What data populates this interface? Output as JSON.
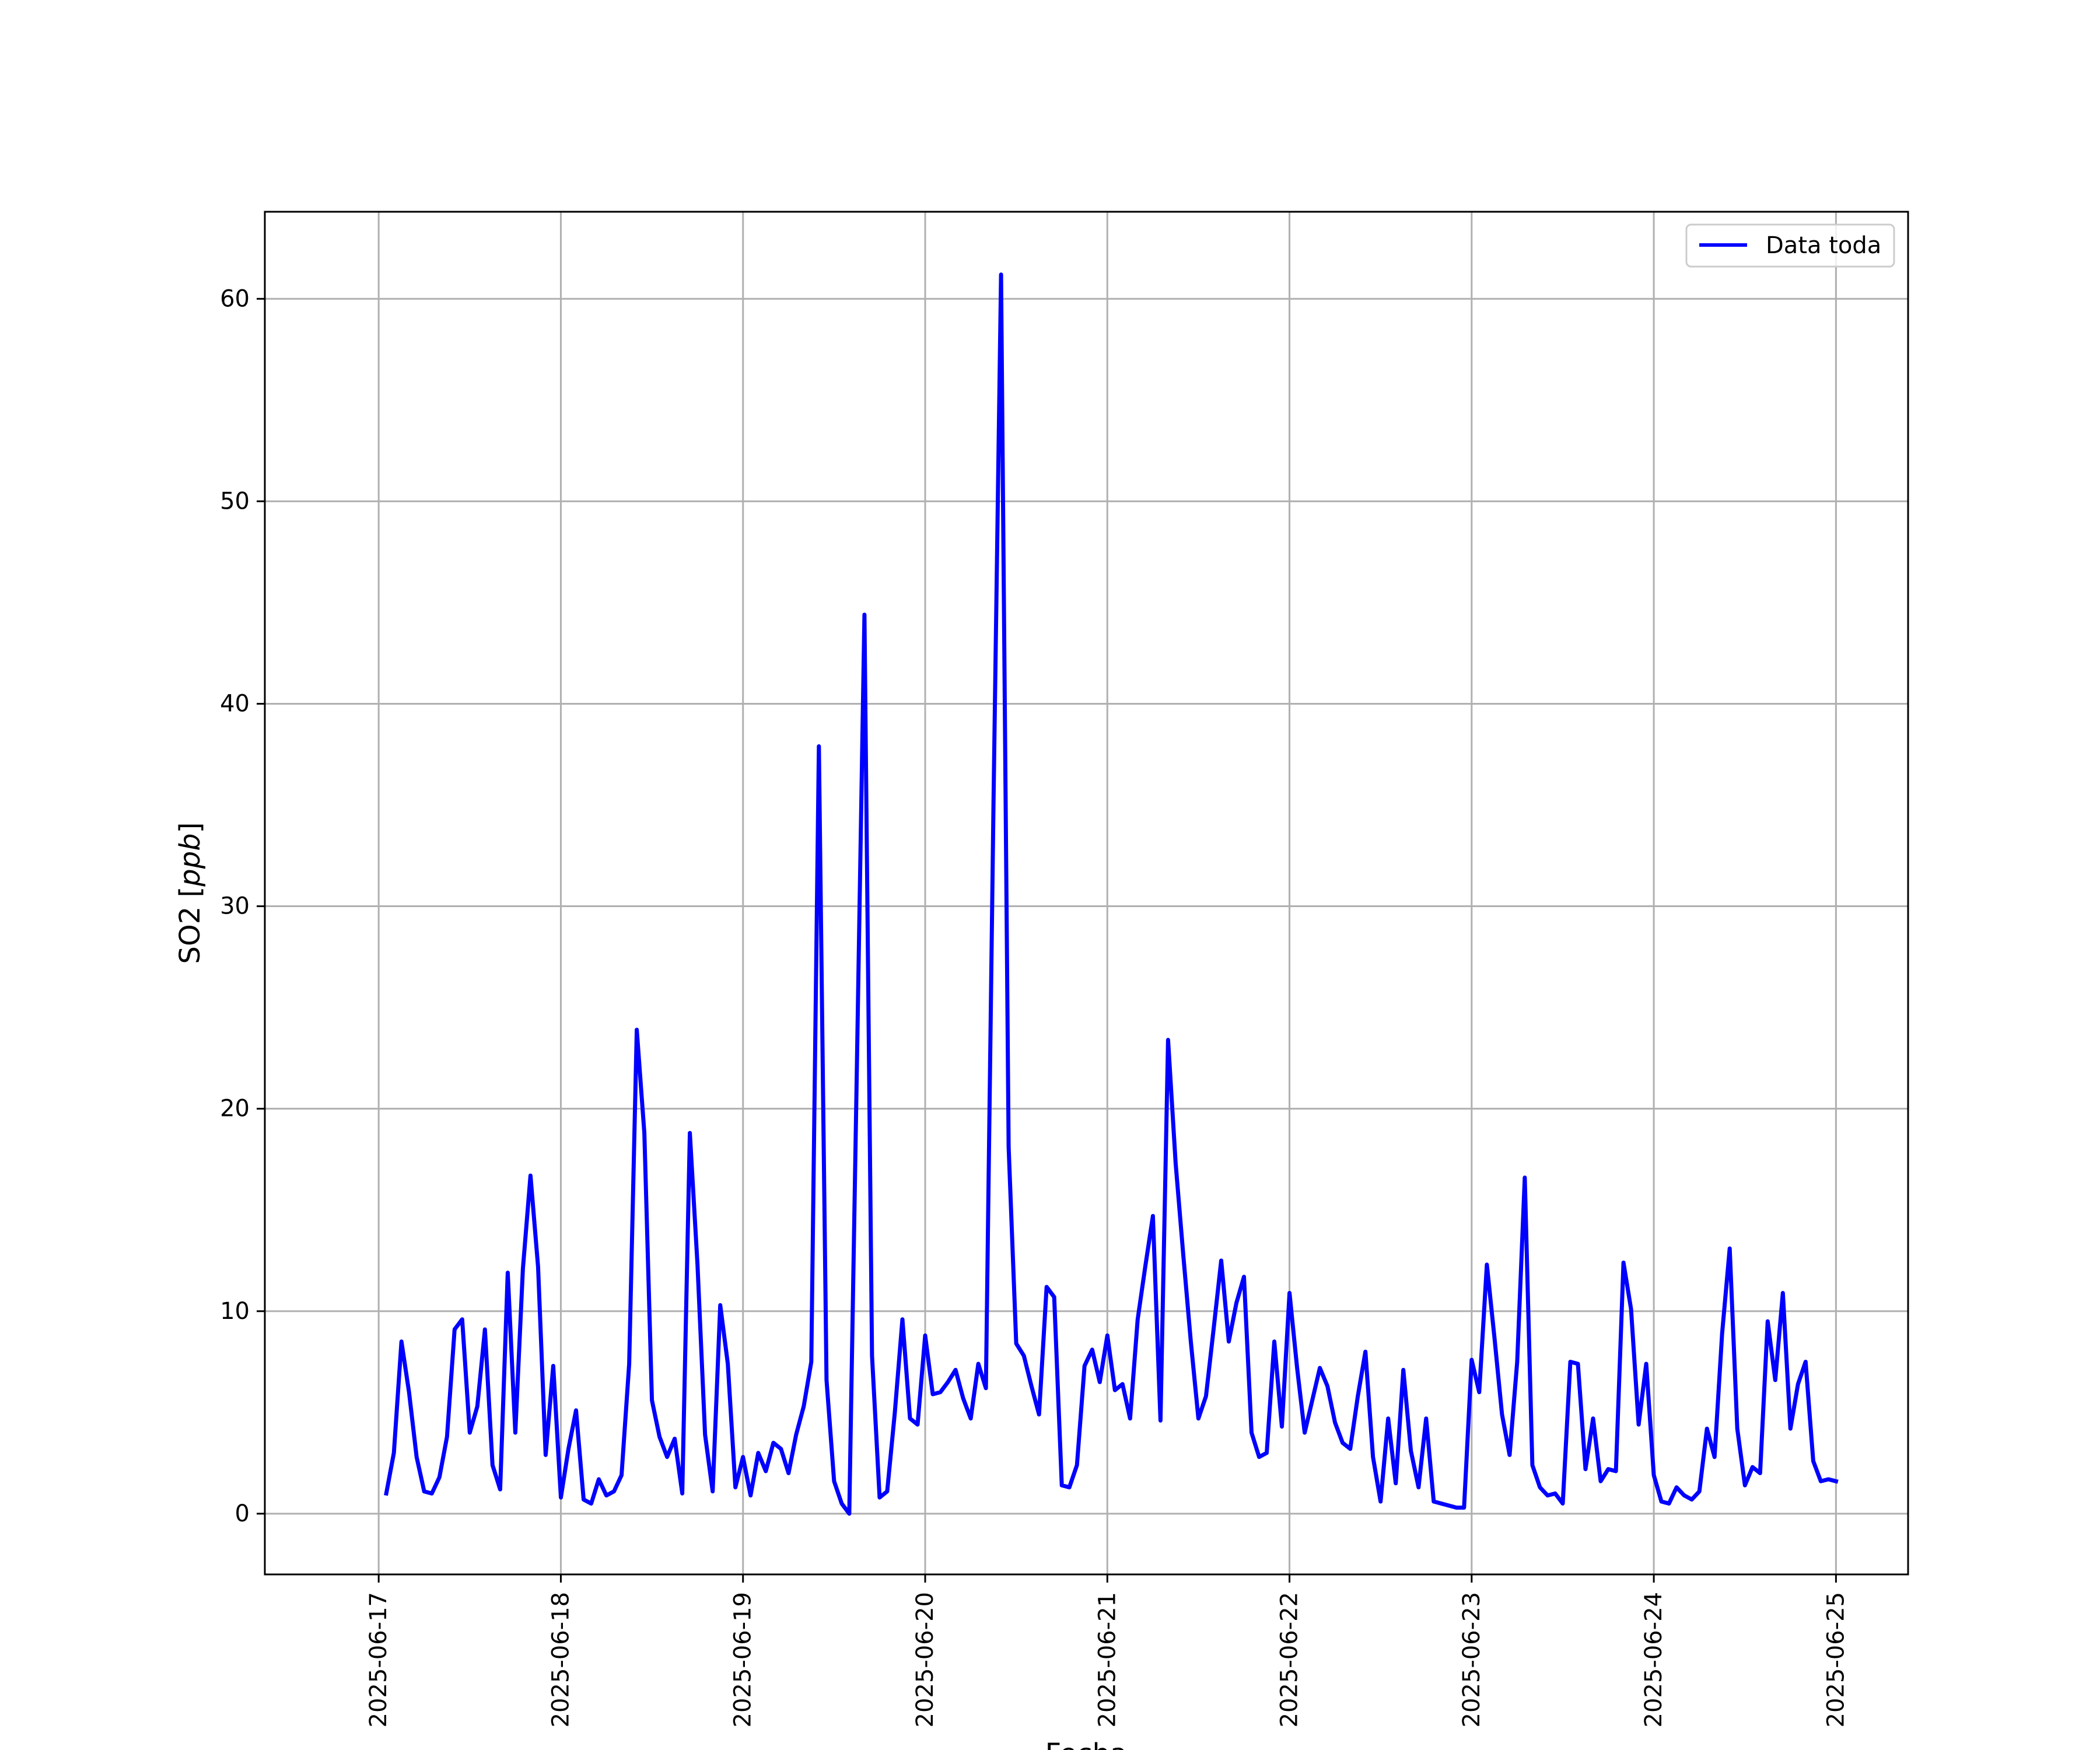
{
  "chart_data": {
    "type": "line",
    "title": "",
    "xlabel": "Fecha",
    "ylabel_text": "SO2 [",
    "ylabel_unit": "ppb",
    "ylabel_close": "]",
    "x_axis_type": "date",
    "x_ticks": [
      "2025-06-17",
      "2025-06-18",
      "2025-06-19",
      "2025-06-20",
      "2025-06-21",
      "2025-06-22",
      "2025-06-23",
      "2025-06-24",
      "2025-06-25"
    ],
    "y_ticks": [
      0,
      10,
      20,
      30,
      40,
      50,
      60
    ],
    "xlim": [
      "2025-06-16 09:00",
      "2025-06-25 09:30"
    ],
    "ylim": [
      -3.0,
      64.3
    ],
    "grid": true,
    "legend_position": "top-right",
    "line_color": "#0000ff",
    "series": [
      {
        "name": "Data toda",
        "x": [
          "2025-06-17 01:00",
          "2025-06-17 02:00",
          "2025-06-17 03:00",
          "2025-06-17 04:00",
          "2025-06-17 05:00",
          "2025-06-17 06:00",
          "2025-06-17 07:00",
          "2025-06-17 08:00",
          "2025-06-17 09:00",
          "2025-06-17 10:00",
          "2025-06-17 11:00",
          "2025-06-17 12:00",
          "2025-06-17 13:00",
          "2025-06-17 14:00",
          "2025-06-17 15:00",
          "2025-06-17 16:00",
          "2025-06-17 17:00",
          "2025-06-17 18:00",
          "2025-06-17 19:00",
          "2025-06-17 20:00",
          "2025-06-17 21:00",
          "2025-06-17 22:00",
          "2025-06-17 23:00",
          "2025-06-18 00:00",
          "2025-06-18 01:00",
          "2025-06-18 02:00",
          "2025-06-18 03:00",
          "2025-06-18 04:00",
          "2025-06-18 05:00",
          "2025-06-18 06:00",
          "2025-06-18 07:00",
          "2025-06-18 08:00",
          "2025-06-18 09:00",
          "2025-06-18 10:00",
          "2025-06-18 11:00",
          "2025-06-18 12:00",
          "2025-06-18 13:00",
          "2025-06-18 14:00",
          "2025-06-18 15:00",
          "2025-06-18 16:00",
          "2025-06-18 17:00",
          "2025-06-18 18:00",
          "2025-06-18 19:00",
          "2025-06-18 20:00",
          "2025-06-18 21:00",
          "2025-06-18 22:00",
          "2025-06-18 23:00",
          "2025-06-19 00:00",
          "2025-06-19 01:00",
          "2025-06-19 02:00",
          "2025-06-19 03:00",
          "2025-06-19 04:00",
          "2025-06-19 05:00",
          "2025-06-19 06:00",
          "2025-06-19 07:00",
          "2025-06-19 08:00",
          "2025-06-19 09:00",
          "2025-06-19 10:00",
          "2025-06-19 11:00",
          "2025-06-19 12:00",
          "2025-06-19 13:00",
          "2025-06-19 14:00",
          "2025-06-19 15:00",
          "2025-06-19 16:00",
          "2025-06-19 17:00",
          "2025-06-19 18:00",
          "2025-06-19 19:00",
          "2025-06-19 20:00",
          "2025-06-19 21:00",
          "2025-06-19 22:00",
          "2025-06-19 23:00",
          "2025-06-20 00:00",
          "2025-06-20 01:00",
          "2025-06-20 02:00",
          "2025-06-20 03:00",
          "2025-06-20 04:00",
          "2025-06-20 05:00",
          "2025-06-20 06:00",
          "2025-06-20 07:00",
          "2025-06-20 08:00",
          "2025-06-20 09:00",
          "2025-06-20 10:00",
          "2025-06-20 11:00",
          "2025-06-20 12:00",
          "2025-06-20 13:00",
          "2025-06-20 14:00",
          "2025-06-20 15:00",
          "2025-06-20 16:00",
          "2025-06-20 17:00",
          "2025-06-20 18:00",
          "2025-06-20 19:00",
          "2025-06-20 20:00",
          "2025-06-20 21:00",
          "2025-06-20 22:00",
          "2025-06-20 23:00",
          "2025-06-21 00:00",
          "2025-06-21 01:00",
          "2025-06-21 02:00",
          "2025-06-21 03:00",
          "2025-06-21 04:00",
          "2025-06-21 05:00",
          "2025-06-21 06:00",
          "2025-06-21 07:00",
          "2025-06-21 08:00",
          "2025-06-21 09:00",
          "2025-06-21 10:00",
          "2025-06-21 11:00",
          "2025-06-21 12:00",
          "2025-06-21 13:00",
          "2025-06-21 14:00",
          "2025-06-21 15:00",
          "2025-06-21 16:00",
          "2025-06-21 17:00",
          "2025-06-21 18:00",
          "2025-06-21 19:00",
          "2025-06-21 20:00",
          "2025-06-21 21:00",
          "2025-06-21 22:00",
          "2025-06-21 23:00",
          "2025-06-22 00:00",
          "2025-06-22 01:00",
          "2025-06-22 02:00",
          "2025-06-22 03:00",
          "2025-06-22 04:00",
          "2025-06-22 05:00",
          "2025-06-22 06:00",
          "2025-06-22 07:00",
          "2025-06-22 08:00",
          "2025-06-22 09:00",
          "2025-06-22 10:00",
          "2025-06-22 11:00",
          "2025-06-22 12:00",
          "2025-06-22 13:00",
          "2025-06-22 14:00",
          "2025-06-22 15:00",
          "2025-06-22 16:00",
          "2025-06-22 17:00",
          "2025-06-22 18:00",
          "2025-06-22 19:00",
          "2025-06-22 20:00",
          "2025-06-22 21:00",
          "2025-06-22 22:00",
          "2025-06-22 23:00",
          "2025-06-23 00:00",
          "2025-06-23 01:00",
          "2025-06-23 02:00",
          "2025-06-23 03:00",
          "2025-06-23 04:00",
          "2025-06-23 05:00",
          "2025-06-23 06:00",
          "2025-06-23 07:00",
          "2025-06-23 08:00",
          "2025-06-23 09:00",
          "2025-06-23 10:00",
          "2025-06-23 11:00",
          "2025-06-23 12:00",
          "2025-06-23 13:00",
          "2025-06-23 14:00",
          "2025-06-23 15:00",
          "2025-06-23 16:00",
          "2025-06-23 17:00",
          "2025-06-23 18:00",
          "2025-06-23 19:00",
          "2025-06-23 20:00",
          "2025-06-23 21:00",
          "2025-06-23 22:00",
          "2025-06-23 23:00",
          "2025-06-24 00:00",
          "2025-06-24 01:00",
          "2025-06-24 02:00",
          "2025-06-24 03:00",
          "2025-06-24 04:00",
          "2025-06-24 05:00",
          "2025-06-24 06:00",
          "2025-06-24 07:00",
          "2025-06-24 08:00",
          "2025-06-24 09:00",
          "2025-06-24 10:00",
          "2025-06-24 11:00",
          "2025-06-24 12:00",
          "2025-06-24 13:00",
          "2025-06-24 14:00",
          "2025-06-24 15:00",
          "2025-06-24 16:00",
          "2025-06-24 17:00",
          "2025-06-24 18:00",
          "2025-06-24 19:00",
          "2025-06-24 20:00",
          "2025-06-24 21:00",
          "2025-06-24 22:00",
          "2025-06-24 23:00",
          "2025-06-25 00:00"
        ],
        "y": [
          1.0,
          3.0,
          8.5,
          6.0,
          2.8,
          1.1,
          1.0,
          1.8,
          3.8,
          9.1,
          9.6,
          4.0,
          5.3,
          9.1,
          2.4,
          1.2,
          11.9,
          4.0,
          12.1,
          16.7,
          12.2,
          2.9,
          7.3,
          0.8,
          3.2,
          5.1,
          0.7,
          0.5,
          1.7,
          0.9,
          1.1,
          1.9,
          7.4,
          23.9,
          18.8,
          5.6,
          3.8,
          2.8,
          3.7,
          1.0,
          18.8,
          12.3,
          3.9,
          1.1,
          10.3,
          7.4,
          1.3,
          2.8,
          0.9,
          3.0,
          2.1,
          3.5,
          3.2,
          2.0,
          3.9,
          5.3,
          7.5,
          37.9,
          6.6,
          1.6,
          0.5,
          0.0,
          22.0,
          44.4,
          7.8,
          0.8,
          1.1,
          5.0,
          9.6,
          4.7,
          4.4,
          8.8,
          5.9,
          6.0,
          6.5,
          7.1,
          5.7,
          4.7,
          7.4,
          6.2,
          35.0,
          61.2,
          18.1,
          8.4,
          7.8,
          6.3,
          4.9,
          11.2,
          10.7,
          1.4,
          1.3,
          2.4,
          7.3,
          8.1,
          6.5,
          8.8,
          6.1,
          6.4,
          4.7,
          9.6,
          12.2,
          14.7,
          4.6,
          23.4,
          17.3,
          12.8,
          8.5,
          4.7,
          5.8,
          9.1,
          12.5,
          8.5,
          10.4,
          11.7,
          4.0,
          2.8,
          3.0,
          8.5,
          4.3,
          10.9,
          7.2,
          4.0,
          5.6,
          7.2,
          6.3,
          4.5,
          3.5,
          3.2,
          5.8,
          8.0,
          2.8,
          0.6,
          4.7,
          1.5,
          7.1,
          3.1,
          1.3,
          4.7,
          0.6,
          0.5,
          0.4,
          0.3,
          0.3,
          7.6,
          6.0,
          12.3,
          8.7,
          4.9,
          2.9,
          7.5,
          16.6,
          2.4,
          1.3,
          0.9,
          1.0,
          0.5,
          7.5,
          7.4,
          2.2,
          4.7,
          1.6,
          2.2,
          2.1,
          12.4,
          10.1,
          4.4,
          7.4,
          1.9,
          0.6,
          0.5,
          1.3,
          0.9,
          0.7,
          1.1,
          4.2,
          2.8,
          8.9,
          13.1,
          4.2,
          1.4,
          2.3,
          2.0,
          9.5,
          6.6,
          10.9,
          4.2,
          6.4,
          7.5,
          2.6,
          1.6,
          1.7,
          1.6
        ]
      }
    ]
  }
}
